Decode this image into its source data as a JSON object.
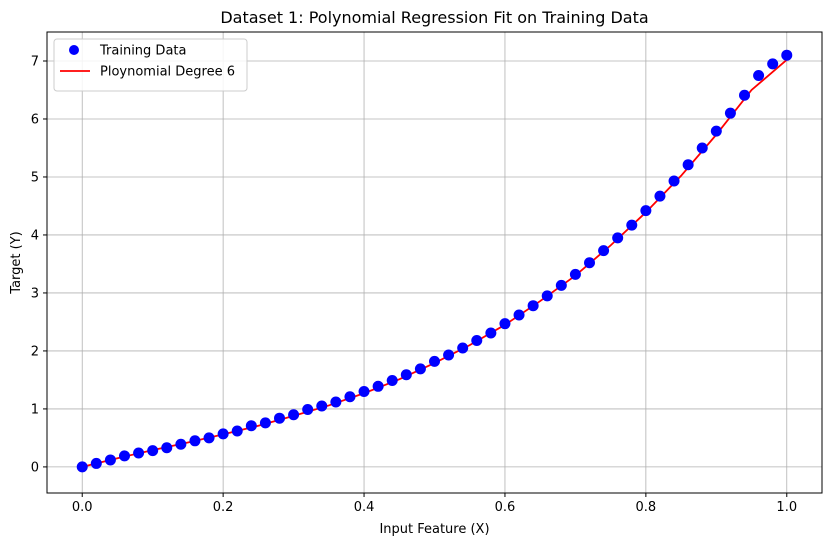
{
  "chart_data": {
    "type": "scatter",
    "title": "Dataset 1: Polynomial Regression Fit on Training Data",
    "xlabel": "Input Feature (X)",
    "ylabel": "Target (Y)",
    "xlim": [
      -0.05,
      1.05
    ],
    "ylim": [
      -0.45,
      7.5
    ],
    "xticks": [
      0.0,
      0.2,
      0.4,
      0.6,
      0.8,
      1.0
    ],
    "xtick_labels": [
      "0.0",
      "0.2",
      "0.4",
      "0.6",
      "0.8",
      "1.0"
    ],
    "yticks": [
      0,
      1,
      2,
      3,
      4,
      5,
      6,
      7
    ],
    "ytick_labels": [
      "0",
      "1",
      "2",
      "3",
      "4",
      "5",
      "6",
      "7"
    ],
    "grid": true,
    "legend_position": "top-left",
    "series": [
      {
        "name": "Training Data",
        "kind": "scatter",
        "color": "#0000ff",
        "x": [
          0.0,
          0.02,
          0.04,
          0.06,
          0.08,
          0.1,
          0.12,
          0.14,
          0.16,
          0.18,
          0.2,
          0.22,
          0.24,
          0.26,
          0.28,
          0.3,
          0.32,
          0.34,
          0.36,
          0.38,
          0.4,
          0.42,
          0.44,
          0.46,
          0.48,
          0.5,
          0.52,
          0.54,
          0.56,
          0.58,
          0.6,
          0.62,
          0.64,
          0.66,
          0.68,
          0.7,
          0.72,
          0.74,
          0.76,
          0.78,
          0.8,
          0.82,
          0.84,
          0.86,
          0.88,
          0.9,
          0.92,
          0.94,
          0.96,
          0.98,
          1.0
        ],
        "y": [
          0.0,
          0.06,
          0.12,
          0.19,
          0.24,
          0.28,
          0.33,
          0.39,
          0.45,
          0.5,
          0.57,
          0.62,
          0.71,
          0.76,
          0.84,
          0.9,
          0.99,
          1.05,
          1.12,
          1.21,
          1.3,
          1.39,
          1.49,
          1.59,
          1.69,
          1.82,
          1.93,
          2.05,
          2.18,
          2.31,
          2.47,
          2.62,
          2.78,
          2.95,
          3.13,
          3.32,
          3.52,
          3.73,
          3.95,
          4.17,
          4.42,
          4.67,
          4.93,
          5.21,
          5.5,
          5.79,
          6.1,
          6.41,
          6.75,
          6.95,
          7.1
        ]
      },
      {
        "name": "Ploynomial Degree 6",
        "kind": "line",
        "color": "#ff0000",
        "x": [
          0.0,
          0.05,
          0.1,
          0.15,
          0.2,
          0.25,
          0.3,
          0.35,
          0.4,
          0.45,
          0.5,
          0.55,
          0.6,
          0.65,
          0.7,
          0.75,
          0.8,
          0.85,
          0.9,
          0.95,
          1.0
        ],
        "y": [
          0.0,
          0.15,
          0.29,
          0.42,
          0.56,
          0.71,
          0.88,
          1.06,
          1.27,
          1.51,
          1.79,
          2.1,
          2.45,
          2.86,
          3.3,
          3.82,
          4.39,
          5.02,
          5.73,
          6.5,
          7.02
        ]
      }
    ]
  }
}
